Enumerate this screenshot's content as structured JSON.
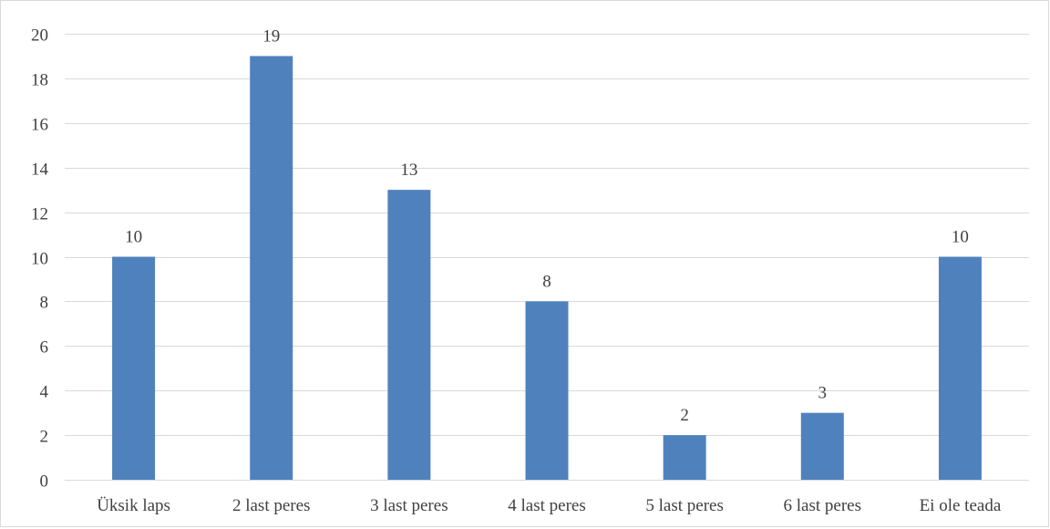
{
  "chart_data": {
    "type": "bar",
    "categories": [
      "Üksik laps",
      "2 last peres",
      "3 last peres",
      "4 last peres",
      "5 last peres",
      "6 last peres",
      "Ei ole teada"
    ],
    "values": [
      10,
      19,
      13,
      8,
      2,
      3,
      10
    ],
    "title": "",
    "xlabel": "",
    "ylabel": "",
    "ylim": [
      0,
      20
    ],
    "yticks": [
      0,
      2,
      4,
      6,
      8,
      10,
      12,
      14,
      16,
      18,
      20
    ],
    "data_labels": true,
    "grid": true,
    "legend": "none",
    "bar_color": "#4f81bd",
    "grid_color": "#d9d9d9"
  }
}
